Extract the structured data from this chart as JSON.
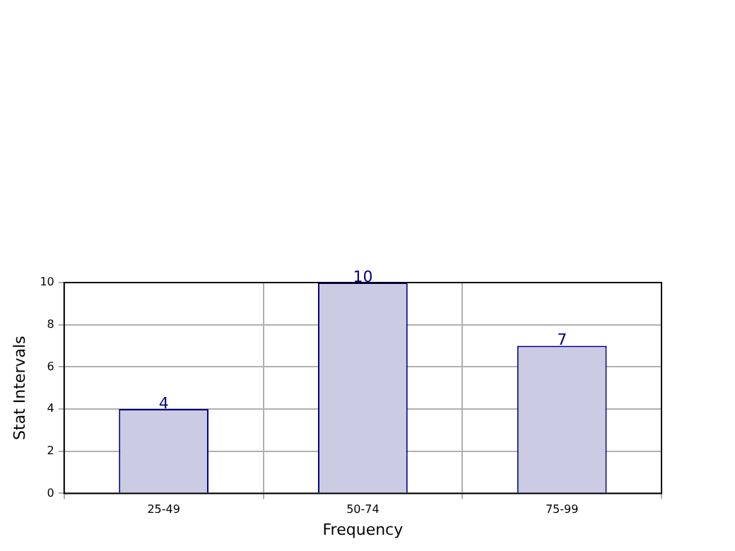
{
  "chart_data": {
    "type": "bar",
    "xlabel": "Frequency",
    "ylabel": "Stat Intervals",
    "categories": [
      "25-49",
      "50-74",
      "75-99"
    ],
    "values": [
      4,
      10,
      7
    ],
    "color": "#cbcbe3",
    "ylim": [
      0,
      10
    ],
    "yticks": [
      0,
      2,
      4,
      6,
      8,
      10
    ],
    "grid": true,
    "data_labels": true
  }
}
